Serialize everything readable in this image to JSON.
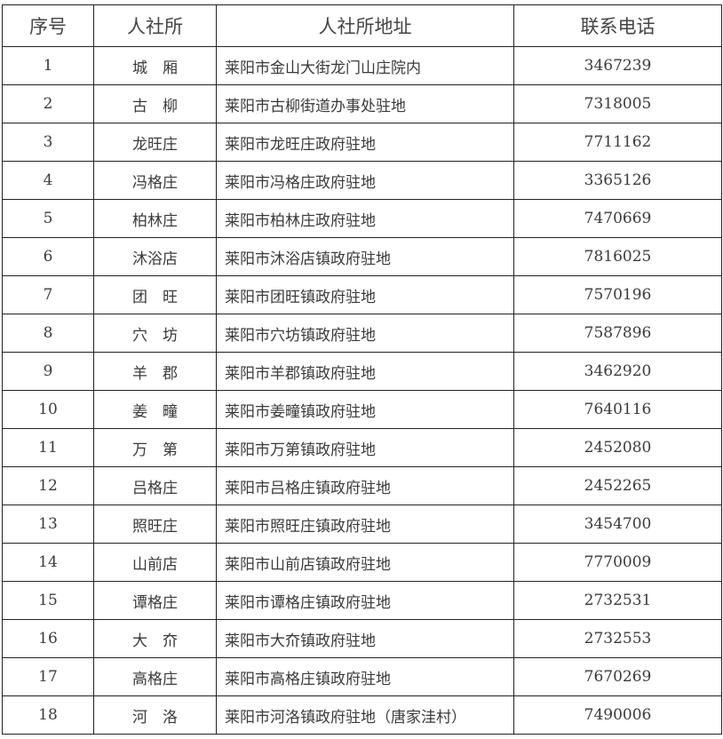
{
  "table": {
    "headers": [
      "序号",
      "人社所",
      "人社所地址",
      "联系电话"
    ],
    "rows": [
      {
        "no": "1",
        "name": "城　厢",
        "address": "莱阳市金山大街龙门山庄院内",
        "phone": "3467239"
      },
      {
        "no": "2",
        "name": "古　柳",
        "address": "莱阳市古柳街道办事处驻地",
        "phone": "7318005"
      },
      {
        "no": "3",
        "name": "龙旺庄",
        "address": "莱阳市龙旺庄政府驻地",
        "phone": "7711162"
      },
      {
        "no": "4",
        "name": "冯格庄",
        "address": "莱阳市冯格庄政府驻地",
        "phone": "3365126"
      },
      {
        "no": "5",
        "name": "柏林庄",
        "address": "莱阳市柏林庄政府驻地",
        "phone": "7470669"
      },
      {
        "no": "6",
        "name": "沐浴店",
        "address": "莱阳市沐浴店镇政府驻地",
        "phone": "7816025"
      },
      {
        "no": "7",
        "name": "团　旺",
        "address": "莱阳市团旺镇政府驻地",
        "phone": "7570196"
      },
      {
        "no": "8",
        "name": "穴　坊",
        "address": "莱阳市穴坊镇政府驻地",
        "phone": "7587896"
      },
      {
        "no": "9",
        "name": "羊　郡",
        "address": "莱阳市羊郡镇政府驻地",
        "phone": "3462920"
      },
      {
        "no": "10",
        "name": "姜　疃",
        "address": "莱阳市姜疃镇政府驻地",
        "phone": "7640116"
      },
      {
        "no": "11",
        "name": "万　第",
        "address": "莱阳市万第镇政府驻地",
        "phone": "2452080"
      },
      {
        "no": "12",
        "name": "吕格庄",
        "address": "莱阳市吕格庄镇政府驻地",
        "phone": "2452265"
      },
      {
        "no": "13",
        "name": "照旺庄",
        "address": "莱阳市照旺庄镇政府驻地",
        "phone": "3454700"
      },
      {
        "no": "14",
        "name": "山前店",
        "address": "莱阳市山前店镇政府驻地",
        "phone": "7770009"
      },
      {
        "no": "15",
        "name": "谭格庄",
        "address": "莱阳市谭格庄镇政府驻地",
        "phone": "2732531"
      },
      {
        "no": "16",
        "name": "大　夼",
        "address": "莱阳市大夼镇政府驻地",
        "phone": "2732553"
      },
      {
        "no": "17",
        "name": "高格庄",
        "address": "莱阳市高格庄镇政府驻地",
        "phone": "7670269"
      },
      {
        "no": "18",
        "name": "河　洛",
        "address": "莱阳市河洛镇政府驻地（唐家洼村）",
        "phone": "7490006"
      }
    ]
  }
}
